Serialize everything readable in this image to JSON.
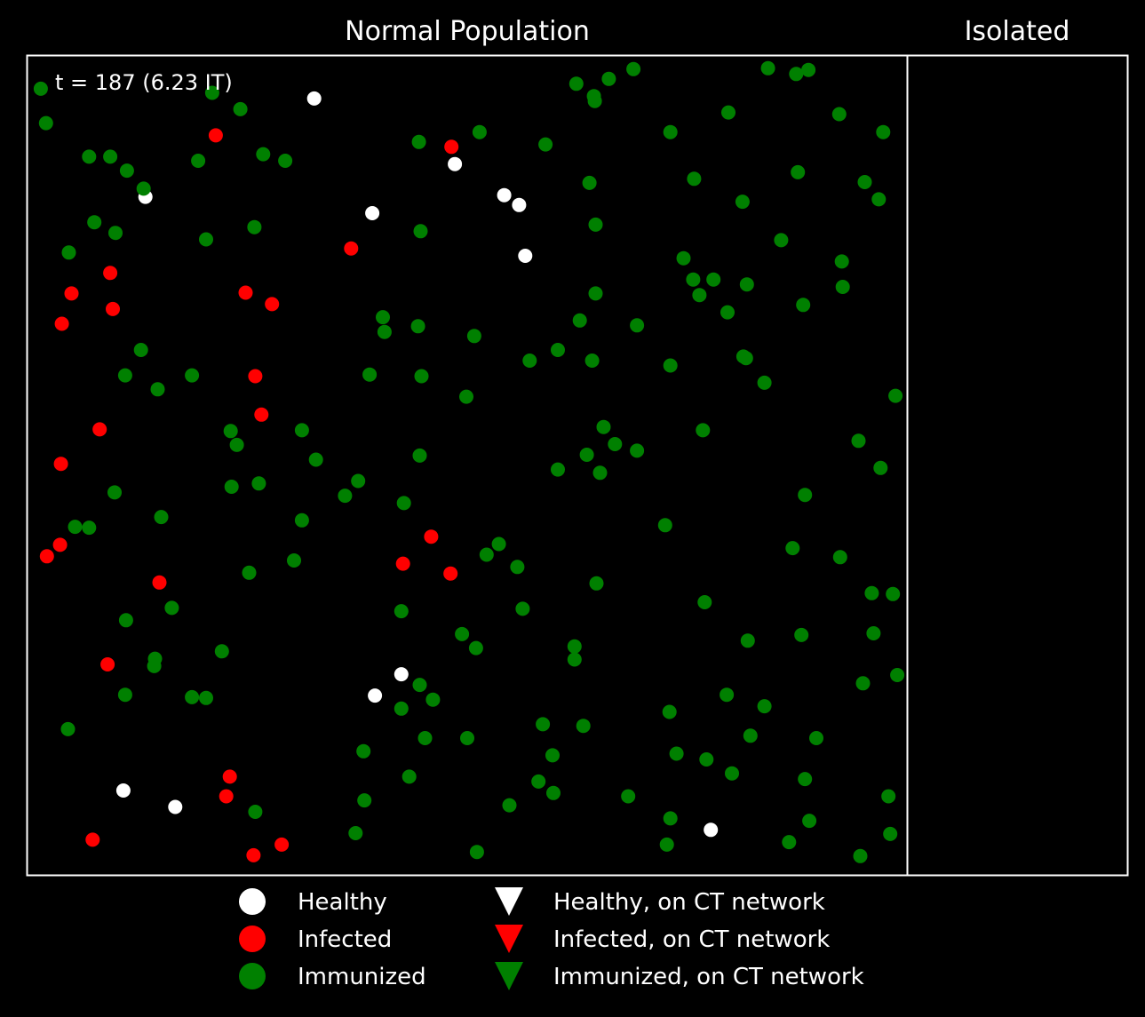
{
  "colors": {
    "background": "#000000",
    "healthy": "#ffffff",
    "infected": "#ff0000",
    "immunized": "#008000",
    "frame": "#ffffff"
  },
  "chart_data": {
    "type": "scatter",
    "panels": [
      {
        "title": "Normal Population",
        "annotation": "t = 187  (6.23 IT)",
        "xlim": [
          0,
          1
        ],
        "ylim": [
          0,
          1
        ]
      },
      {
        "title": "Isolated"
      }
    ],
    "legend": {
      "placement": "bottom-center",
      "entries": [
        {
          "label": "Healthy",
          "marker": "circle",
          "color": "#ffffff"
        },
        {
          "label": "Infected",
          "marker": "circle",
          "color": "#ff0000"
        },
        {
          "label": "Immunized",
          "marker": "circle",
          "color": "#008000"
        },
        {
          "label": "Healthy, on CT network",
          "marker": "triangle-down",
          "color": "#ffffff"
        },
        {
          "label": "Infected, on CT network",
          "marker": "triangle-down",
          "color": "#ff0000"
        },
        {
          "label": "Immunized, on CT network",
          "marker": "triangle-down",
          "color": "#008000"
        }
      ]
    },
    "series": [
      {
        "name": "Healthy",
        "points": [
          [
            0.326,
            0.948
          ],
          [
            0.486,
            0.868
          ],
          [
            0.542,
            0.83
          ],
          [
            0.559,
            0.818
          ],
          [
            0.134,
            0.828
          ],
          [
            0.392,
            0.808
          ],
          [
            0.566,
            0.756
          ],
          [
            0.425,
            0.245
          ],
          [
            0.395,
            0.219
          ],
          [
            0.109,
            0.103
          ],
          [
            0.168,
            0.083
          ],
          [
            0.777,
            0.055
          ]
        ]
      },
      {
        "name": "Infected",
        "points": [
          [
            0.214,
            0.903
          ],
          [
            0.482,
            0.889
          ],
          [
            0.368,
            0.765
          ],
          [
            0.094,
            0.735
          ],
          [
            0.05,
            0.71
          ],
          [
            0.248,
            0.711
          ],
          [
            0.097,
            0.691
          ],
          [
            0.278,
            0.697
          ],
          [
            0.039,
            0.673
          ],
          [
            0.259,
            0.609
          ],
          [
            0.266,
            0.562
          ],
          [
            0.082,
            0.544
          ],
          [
            0.038,
            0.502
          ],
          [
            0.037,
            0.403
          ],
          [
            0.022,
            0.389
          ],
          [
            0.459,
            0.413
          ],
          [
            0.427,
            0.38
          ],
          [
            0.481,
            0.368
          ],
          [
            0.15,
            0.357
          ],
          [
            0.091,
            0.257
          ],
          [
            0.23,
            0.12
          ],
          [
            0.226,
            0.096
          ],
          [
            0.074,
            0.043
          ],
          [
            0.289,
            0.037
          ],
          [
            0.257,
            0.024
          ]
        ]
      },
      {
        "name": "Immunized",
        "points": [
          [
            0.015,
            0.96
          ],
          [
            0.21,
            0.955
          ],
          [
            0.021,
            0.918
          ],
          [
            0.242,
            0.935
          ],
          [
            0.624,
            0.966
          ],
          [
            0.644,
            0.951
          ],
          [
            0.661,
            0.972
          ],
          [
            0.689,
            0.984
          ],
          [
            0.842,
            0.985
          ],
          [
            0.874,
            0.978
          ],
          [
            0.888,
            0.983
          ],
          [
            0.645,
            0.945
          ],
          [
            0.797,
            0.931
          ],
          [
            0.923,
            0.929
          ],
          [
            0.973,
            0.907
          ],
          [
            0.731,
            0.907
          ],
          [
            0.514,
            0.907
          ],
          [
            0.445,
            0.895
          ],
          [
            0.589,
            0.892
          ],
          [
            0.07,
            0.877
          ],
          [
            0.094,
            0.877
          ],
          [
            0.194,
            0.872
          ],
          [
            0.268,
            0.88
          ],
          [
            0.293,
            0.872
          ],
          [
            0.113,
            0.86
          ],
          [
            0.132,
            0.838
          ],
          [
            0.639,
            0.845
          ],
          [
            0.758,
            0.85
          ],
          [
            0.876,
            0.858
          ],
          [
            0.952,
            0.846
          ],
          [
            0.968,
            0.825
          ],
          [
            0.813,
            0.822
          ],
          [
            0.076,
            0.797
          ],
          [
            0.1,
            0.784
          ],
          [
            0.203,
            0.776
          ],
          [
            0.258,
            0.791
          ],
          [
            0.447,
            0.786
          ],
          [
            0.646,
            0.794
          ],
          [
            0.047,
            0.76
          ],
          [
            0.857,
            0.775
          ],
          [
            0.746,
            0.753
          ],
          [
            0.926,
            0.749
          ],
          [
            0.757,
            0.727
          ],
          [
            0.78,
            0.727
          ],
          [
            0.818,
            0.721
          ],
          [
            0.927,
            0.718
          ],
          [
            0.764,
            0.708
          ],
          [
            0.646,
            0.71
          ],
          [
            0.882,
            0.696
          ],
          [
            0.404,
            0.681
          ],
          [
            0.406,
            0.663
          ],
          [
            0.444,
            0.67
          ],
          [
            0.508,
            0.658
          ],
          [
            0.693,
            0.671
          ],
          [
            0.628,
            0.677
          ],
          [
            0.796,
            0.687
          ],
          [
            0.571,
            0.628
          ],
          [
            0.603,
            0.641
          ],
          [
            0.642,
            0.628
          ],
          [
            0.731,
            0.622
          ],
          [
            0.814,
            0.633
          ],
          [
            0.817,
            0.631
          ],
          [
            0.129,
            0.641
          ],
          [
            0.111,
            0.61
          ],
          [
            0.148,
            0.593
          ],
          [
            0.187,
            0.61
          ],
          [
            0.389,
            0.611
          ],
          [
            0.448,
            0.609
          ],
          [
            0.499,
            0.584
          ],
          [
            0.838,
            0.601
          ],
          [
            0.987,
            0.585
          ],
          [
            0.655,
            0.547
          ],
          [
            0.668,
            0.526
          ],
          [
            0.693,
            0.518
          ],
          [
            0.636,
            0.513
          ],
          [
            0.651,
            0.491
          ],
          [
            0.768,
            0.543
          ],
          [
            0.231,
            0.542
          ],
          [
            0.238,
            0.525
          ],
          [
            0.312,
            0.543
          ],
          [
            0.328,
            0.507
          ],
          [
            0.446,
            0.512
          ],
          [
            0.945,
            0.53
          ],
          [
            0.97,
            0.497
          ],
          [
            0.603,
            0.495
          ],
          [
            0.099,
            0.467
          ],
          [
            0.232,
            0.474
          ],
          [
            0.263,
            0.478
          ],
          [
            0.376,
            0.481
          ],
          [
            0.361,
            0.463
          ],
          [
            0.428,
            0.454
          ],
          [
            0.884,
            0.464
          ],
          [
            0.152,
            0.437
          ],
          [
            0.054,
            0.425
          ],
          [
            0.07,
            0.424
          ],
          [
            0.312,
            0.433
          ],
          [
            0.536,
            0.404
          ],
          [
            0.522,
            0.391
          ],
          [
            0.557,
            0.376
          ],
          [
            0.725,
            0.427
          ],
          [
            0.87,
            0.399
          ],
          [
            0.924,
            0.388
          ],
          [
            0.96,
            0.344
          ],
          [
            0.252,
            0.369
          ],
          [
            0.303,
            0.384
          ],
          [
            0.647,
            0.356
          ],
          [
            0.164,
            0.326
          ],
          [
            0.425,
            0.322
          ],
          [
            0.563,
            0.325
          ],
          [
            0.494,
            0.294
          ],
          [
            0.51,
            0.277
          ],
          [
            0.984,
            0.343
          ],
          [
            0.77,
            0.333
          ],
          [
            0.819,
            0.286
          ],
          [
            0.88,
            0.293
          ],
          [
            0.962,
            0.295
          ],
          [
            0.112,
            0.311
          ],
          [
            0.145,
            0.264
          ],
          [
            0.144,
            0.255
          ],
          [
            0.221,
            0.273
          ],
          [
            0.622,
            0.279
          ],
          [
            0.622,
            0.263
          ],
          [
            0.989,
            0.244
          ],
          [
            0.95,
            0.234
          ],
          [
            0.111,
            0.22
          ],
          [
            0.187,
            0.217
          ],
          [
            0.203,
            0.216
          ],
          [
            0.446,
            0.232
          ],
          [
            0.461,
            0.214
          ],
          [
            0.425,
            0.203
          ],
          [
            0.046,
            0.178
          ],
          [
            0.795,
            0.22
          ],
          [
            0.838,
            0.206
          ],
          [
            0.73,
            0.199
          ],
          [
            0.586,
            0.184
          ],
          [
            0.632,
            0.182
          ],
          [
            0.452,
            0.167
          ],
          [
            0.5,
            0.167
          ],
          [
            0.822,
            0.17
          ],
          [
            0.897,
            0.167
          ],
          [
            0.382,
            0.151
          ],
          [
            0.597,
            0.146
          ],
          [
            0.738,
            0.148
          ],
          [
            0.772,
            0.141
          ],
          [
            0.801,
            0.124
          ],
          [
            0.434,
            0.12
          ],
          [
            0.581,
            0.114
          ],
          [
            0.598,
            0.1
          ],
          [
            0.884,
            0.117
          ],
          [
            0.683,
            0.096
          ],
          [
            0.979,
            0.096
          ],
          [
            0.259,
            0.077
          ],
          [
            0.383,
            0.091
          ],
          [
            0.548,
            0.085
          ],
          [
            0.731,
            0.069
          ],
          [
            0.889,
            0.066
          ],
          [
            0.373,
            0.051
          ],
          [
            0.727,
            0.037
          ],
          [
            0.866,
            0.04
          ],
          [
            0.981,
            0.05
          ],
          [
            0.511,
            0.028
          ],
          [
            0.947,
            0.023
          ]
        ]
      }
    ]
  }
}
